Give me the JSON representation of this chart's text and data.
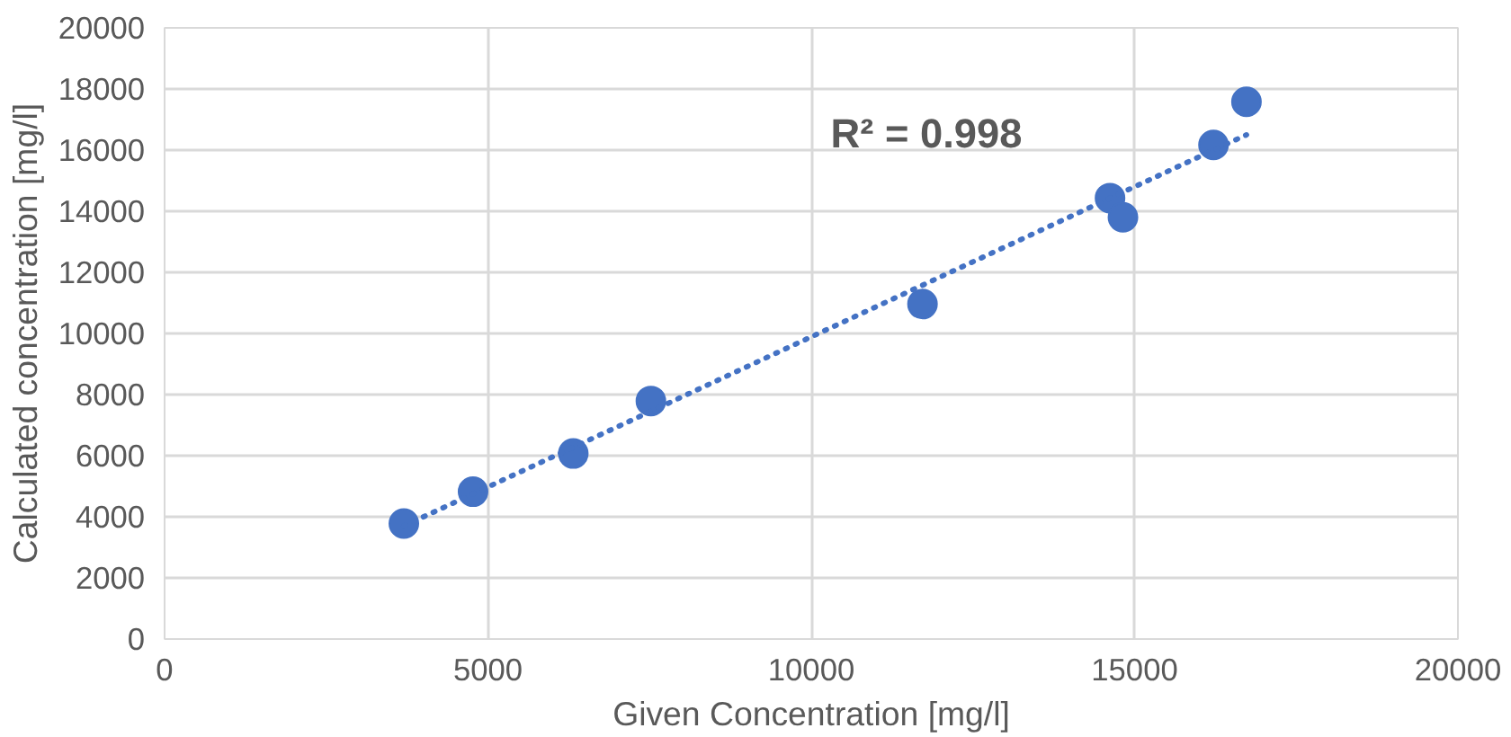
{
  "chart_data": {
    "type": "scatter",
    "xlabel": "Given Concentration [mg/l]",
    "ylabel": "Calculated concentration [mg/l]",
    "xlim": [
      0,
      20000
    ],
    "xticks": [
      0,
      5000,
      10000,
      15000,
      20000
    ],
    "ylim": [
      0,
      20000
    ],
    "yticks": [
      0,
      2000,
      4000,
      6000,
      8000,
      10000,
      12000,
      14000,
      16000,
      18000,
      20000
    ],
    "grid": true,
    "marker": "circle",
    "annotations": [
      "R² = 0.998"
    ],
    "x": [
      3700,
      4770,
      6320,
      7520,
      11720,
      14620,
      14820,
      16220,
      16730
    ],
    "series": [
      {
        "color": "#4472c4",
        "values": [
          3780,
          4820,
          6070,
          7790,
          10960,
          14430,
          13800,
          16170,
          17580
        ]
      },
      {
        "type": "line",
        "color": "#4472c4",
        "line_style": "dotted",
        "marker": "none",
        "x": [
          3700,
          16730
        ],
        "values": [
          3700,
          16500
        ]
      }
    ]
  }
}
